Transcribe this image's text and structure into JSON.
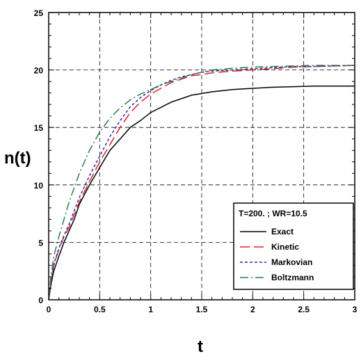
{
  "chart_data": {
    "type": "line",
    "title": "",
    "xlabel": "t",
    "ylabel": "n(t)",
    "xlim": [
      0,
      3
    ],
    "ylim": [
      0,
      25
    ],
    "xticks": [
      "0",
      "0.5",
      "1",
      "1.5",
      "2",
      "2.5",
      "3"
    ],
    "yticks": [
      "0",
      "5",
      "10",
      "15",
      "20",
      "25"
    ],
    "grid": true,
    "legend_placement": "bottom-right",
    "legend_title": "T=200. ; WR=10.5",
    "series": [
      {
        "name": "Exact",
        "color": "#000000",
        "dash": "solid",
        "x": [
          0,
          0.02,
          0.05,
          0.1,
          0.15,
          0.2,
          0.25,
          0.3,
          0.4,
          0.5,
          0.6,
          0.7,
          0.8,
          0.9,
          1.0,
          1.2,
          1.4,
          1.6,
          1.8,
          2.0,
          2.2,
          2.4,
          2.6,
          2.8,
          3.0
        ],
        "y": [
          0,
          1.2,
          2.5,
          3.8,
          5.0,
          6.0,
          7.0,
          8.3,
          10.0,
          11.5,
          13.0,
          14.0,
          15.0,
          15.6,
          16.3,
          17.2,
          17.8,
          18.1,
          18.3,
          18.4,
          18.5,
          18.55,
          18.6,
          18.6,
          18.6
        ]
      },
      {
        "name": "Kinetic",
        "color": "#e0202a",
        "dash": "long-dash",
        "x": [
          0,
          0.02,
          0.05,
          0.1,
          0.15,
          0.2,
          0.3,
          0.4,
          0.5,
          0.6,
          0.7,
          0.8,
          0.9,
          1.0,
          1.1,
          1.2,
          1.3,
          1.4,
          1.5,
          1.6,
          1.8,
          2.0,
          2.2,
          2.4,
          2.6,
          2.8,
          3.0
        ],
        "y": [
          0,
          1.4,
          3.0,
          4.4,
          5.5,
          6.3,
          8.5,
          10.3,
          12.0,
          13.5,
          15.0,
          16.3,
          17.2,
          17.9,
          18.4,
          18.9,
          19.2,
          19.5,
          19.6,
          19.75,
          19.9,
          20.0,
          20.1,
          20.25,
          20.3,
          20.35,
          20.4
        ]
      },
      {
        "name": "Markovian",
        "color": "#2a2aa8",
        "dash": "short-dash",
        "x": [
          0,
          0.02,
          0.05,
          0.1,
          0.15,
          0.2,
          0.3,
          0.4,
          0.5,
          0.6,
          0.7,
          0.8,
          0.9,
          1.0,
          1.1,
          1.2,
          1.3,
          1.4,
          1.5,
          1.6,
          1.8,
          2.0,
          2.2,
          2.4,
          2.6,
          2.8,
          3.0
        ],
        "y": [
          0,
          1.5,
          3.1,
          4.5,
          5.6,
          6.6,
          8.9,
          10.8,
          12.5,
          14.2,
          15.6,
          16.8,
          17.6,
          18.2,
          18.7,
          19.1,
          19.4,
          19.6,
          19.8,
          19.9,
          20.0,
          20.1,
          20.2,
          20.3,
          20.3,
          20.35,
          20.4
        ]
      },
      {
        "name": "Boltzmann",
        "color": "#2e7d4f",
        "dash": "dash-dot",
        "x": [
          0,
          0.02,
          0.05,
          0.1,
          0.15,
          0.2,
          0.3,
          0.4,
          0.5,
          0.6,
          0.7,
          0.8,
          0.9,
          1.0,
          1.1,
          1.2,
          1.3,
          1.4,
          1.5,
          1.6,
          1.8,
          2.0,
          2.2,
          2.4,
          2.6,
          2.8,
          3.0
        ],
        "y": [
          0,
          1.9,
          3.8,
          5.5,
          7.0,
          8.5,
          11.0,
          13.0,
          14.6,
          15.8,
          16.7,
          17.4,
          17.9,
          18.3,
          18.7,
          19.0,
          19.3,
          19.6,
          19.8,
          20.0,
          20.15,
          20.25,
          20.3,
          20.35,
          20.4,
          20.4,
          20.4
        ]
      }
    ]
  }
}
